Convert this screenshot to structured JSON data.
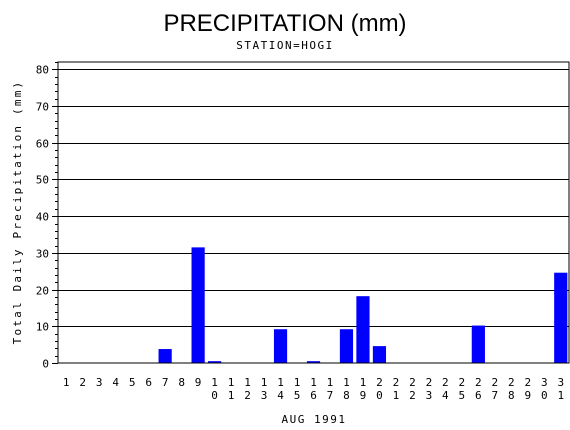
{
  "chart_data": {
    "type": "bar",
    "title": "PRECIPITATION (mm)",
    "subtitle": "STATION=HOGI",
    "xlabel": "AUG 1991",
    "ylabel": "Total Daily Precipitation (mm)",
    "ylim": [
      0,
      82
    ],
    "yticks": [
      0,
      10,
      20,
      30,
      40,
      50,
      60,
      70,
      80
    ],
    "grid": true,
    "bar_color": "#0000ff",
    "categories": [
      "1",
      "2",
      "3",
      "4",
      "5",
      "6",
      "7",
      "8",
      "9",
      "10",
      "11",
      "12",
      "13",
      "14",
      "15",
      "16",
      "17",
      "18",
      "19",
      "20",
      "21",
      "22",
      "23",
      "24",
      "25",
      "26",
      "27",
      "28",
      "29",
      "30",
      "31"
    ],
    "values": [
      0,
      0,
      0,
      0,
      0,
      0,
      3.8,
      0,
      31.5,
      0.5,
      0,
      0,
      0,
      9.2,
      0,
      0.5,
      0,
      9.2,
      18.2,
      4.6,
      0,
      0,
      0,
      0,
      0,
      10.2,
      0,
      0,
      0,
      0,
      24.6
    ]
  }
}
